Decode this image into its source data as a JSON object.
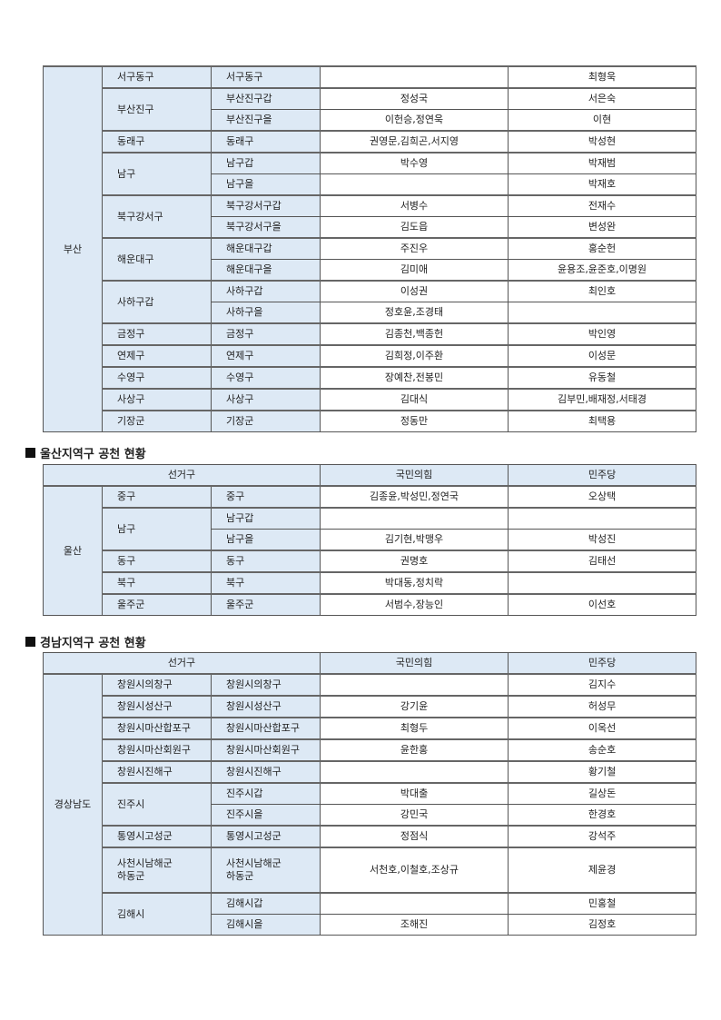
{
  "headers": {
    "district": "선거구",
    "ppp": "국민의힘",
    "dem": "민주당"
  },
  "sections": [
    {
      "id": "busan",
      "title": "",
      "region": "부산",
      "districts": [
        {
          "name": "서구동구",
          "seats": [
            {
              "seat": "서구동구",
              "ppp": "",
              "dem": "최형욱"
            }
          ]
        },
        {
          "name": "부산진구",
          "seats": [
            {
              "seat": "부산진구갑",
              "ppp": "정성국",
              "dem": "서은숙"
            },
            {
              "seat": "부산진구을",
              "ppp": "이헌승,정연욱",
              "dem": "이현"
            }
          ]
        },
        {
          "name": "동래구",
          "seats": [
            {
              "seat": "동래구",
              "ppp": "권영문,김희곤,서지영",
              "dem": "박성현"
            }
          ]
        },
        {
          "name": "남구",
          "seats": [
            {
              "seat": "남구갑",
              "ppp": "박수영",
              "dem": "박재범"
            },
            {
              "seat": "남구을",
              "ppp": "",
              "dem": "박재호"
            }
          ]
        },
        {
          "name": "북구강서구",
          "seats": [
            {
              "seat": "북구강서구갑",
              "ppp": "서병수",
              "dem": "전재수"
            },
            {
              "seat": "북구강서구을",
              "ppp": "김도읍",
              "dem": "변성완"
            }
          ]
        },
        {
          "name": "해운대구",
          "seats": [
            {
              "seat": "해운대구갑",
              "ppp": "주진우",
              "dem": "홍순헌"
            },
            {
              "seat": "해운대구을",
              "ppp": "김미애",
              "dem": "윤용조,윤준호,이명원"
            }
          ]
        },
        {
          "name": "사하구갑",
          "seats": [
            {
              "seat": "사하구갑",
              "ppp": "이성권",
              "dem": "최인호"
            },
            {
              "seat": "사하구을",
              "ppp": "정호윤,조경태",
              "dem": ""
            }
          ]
        },
        {
          "name": "금정구",
          "seats": [
            {
              "seat": "금정구",
              "ppp": "김종천,백종헌",
              "dem": "박인영"
            }
          ]
        },
        {
          "name": "연제구",
          "seats": [
            {
              "seat": "연제구",
              "ppp": "김희정,이주환",
              "dem": "이성문"
            }
          ]
        },
        {
          "name": "수영구",
          "seats": [
            {
              "seat": "수영구",
              "ppp": "장예찬,전봉민",
              "dem": "유동철"
            }
          ]
        },
        {
          "name": "사상구",
          "seats": [
            {
              "seat": "사상구",
              "ppp": "김대식",
              "dem": "김부민,배재정,서태경"
            }
          ]
        },
        {
          "name": "기장군",
          "seats": [
            {
              "seat": "기장군",
              "ppp": "정동만",
              "dem": "최택용"
            }
          ]
        }
      ]
    },
    {
      "id": "ulsan",
      "title": "울산지역구 공천 현황",
      "region": "울산",
      "districts": [
        {
          "name": "중구",
          "seats": [
            {
              "seat": "중구",
              "ppp": "김종윤,박성민,정연국",
              "dem": "오상택"
            }
          ]
        },
        {
          "name": "남구",
          "seats": [
            {
              "seat": "남구갑",
              "ppp": "",
              "dem": ""
            },
            {
              "seat": "남구을",
              "ppp": "김기현,박맹우",
              "dem": "박성진"
            }
          ]
        },
        {
          "name": "동구",
          "seats": [
            {
              "seat": "동구",
              "ppp": "권명호",
              "dem": "김태선"
            }
          ]
        },
        {
          "name": "북구",
          "seats": [
            {
              "seat": "북구",
              "ppp": "박대동,정치락",
              "dem": ""
            }
          ]
        },
        {
          "name": "울주군",
          "seats": [
            {
              "seat": "울주군",
              "ppp": "서범수,장능인",
              "dem": "이선호"
            }
          ]
        }
      ]
    },
    {
      "id": "gn",
      "title": "경남지역구 공천 현황",
      "region": "경상남도",
      "districts": [
        {
          "name": "창원시의창구",
          "seats": [
            {
              "seat": "창원시의창구",
              "ppp": "",
              "dem": "김지수"
            }
          ]
        },
        {
          "name": "창원시성산구",
          "seats": [
            {
              "seat": "창원시성산구",
              "ppp": "강기윤",
              "dem": "허성무"
            }
          ]
        },
        {
          "name": "창원시마산합포구",
          "seats": [
            {
              "seat": "창원시마산합포구",
              "ppp": "최형두",
              "dem": "이옥선"
            }
          ]
        },
        {
          "name": "창원시마산회원구",
          "seats": [
            {
              "seat": "창원시마산회원구",
              "ppp": "윤한홍",
              "dem": "송순호"
            }
          ]
        },
        {
          "name": "창원시진해구",
          "seats": [
            {
              "seat": "창원시진해구",
              "ppp": "",
              "dem": "황기철"
            }
          ]
        },
        {
          "name": "진주시",
          "seats": [
            {
              "seat": "진주시갑",
              "ppp": "박대출",
              "dem": "길상돈"
            },
            {
              "seat": "진주시을",
              "ppp": "강민국",
              "dem": "한경호"
            }
          ]
        },
        {
          "name": "통영시고성군",
          "seats": [
            {
              "seat": "통영시고성군",
              "ppp": "정점식",
              "dem": "강석주"
            }
          ]
        },
        {
          "name": "사천시남해군\n하동군",
          "seats": [
            {
              "seat": "사천시남해군\n하동군",
              "ppp": "서천호,이철호,조상규",
              "dem": "제윤경"
            }
          ]
        },
        {
          "name": "김해시",
          "seats": [
            {
              "seat": "김해시갑",
              "ppp": "",
              "dem": "민홍철"
            },
            {
              "seat": "김해시을",
              "ppp": "조해진",
              "dem": "김정호"
            }
          ]
        }
      ]
    }
  ]
}
